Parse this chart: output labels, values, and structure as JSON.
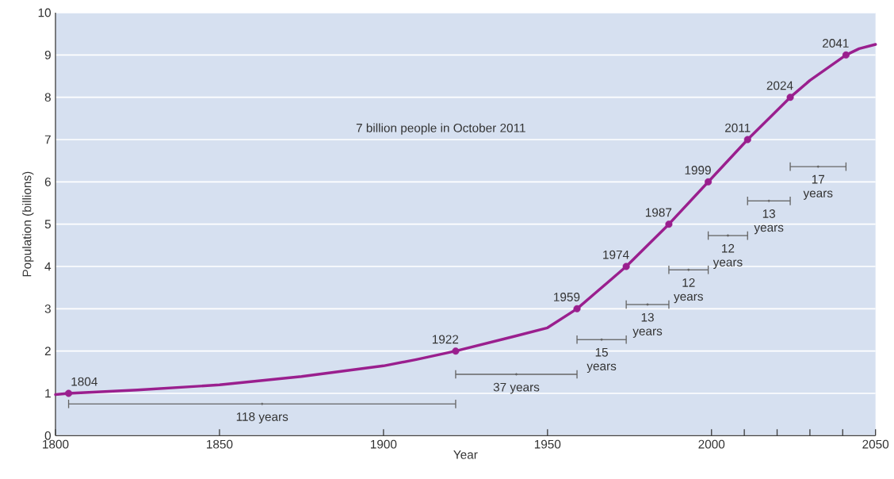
{
  "chart_data": {
    "type": "line",
    "xlabel": "Year",
    "ylabel": "Population (billions)",
    "xlim": [
      1800,
      2050
    ],
    "ylim": [
      0,
      10
    ],
    "xticks": [
      1800,
      1850,
      1900,
      1950,
      2000,
      {
        "value": 2010,
        "label": null
      },
      {
        "value": 2020,
        "label": null
      },
      {
        "value": 2030,
        "label": null
      },
      {
        "value": 2040,
        "label": null
      },
      2050
    ],
    "yticks": [
      0,
      1,
      2,
      3,
      4,
      5,
      6,
      7,
      8,
      9,
      10
    ],
    "grid": "y",
    "line_style": "solid",
    "series": [
      {
        "marker": "none",
        "color": "#9a1f8e",
        "x": [
          1800,
          1804,
          1825,
          1850,
          1875,
          1900,
          1910,
          1922,
          1940,
          1950,
          1959,
          1965,
          1974,
          1987,
          1999,
          2011,
          2024,
          2030,
          2041,
          2045,
          2050
        ],
        "values": [
          0.97,
          1,
          1.08,
          1.2,
          1.4,
          1.65,
          1.8,
          2,
          2.35,
          2.55,
          3,
          3.4,
          4,
          5,
          6,
          7,
          8,
          8.4,
          9,
          9.15,
          9.25
        ]
      },
      {
        "type": "scatter",
        "marker": "circle",
        "color": "#9a1f8e",
        "x": [
          1804,
          1922,
          1959,
          1974,
          1987,
          1999,
          2011,
          2024,
          2041
        ],
        "values": [
          1,
          2,
          3,
          4,
          5,
          6,
          7,
          8,
          9
        ]
      },
      {
        "type": "scatter",
        "marker": "circle",
        "color": "#666666",
        "x": [
          1863,
          1940.5,
          1966.5,
          1980.5,
          1993,
          2005,
          2017.5,
          2032.5
        ],
        "values": [
          0.75,
          1.45,
          2.27,
          3.1,
          3.92,
          4.73,
          5.55,
          6.36
        ],
        "xerrors": [
          [
            1804,
            1922
          ],
          [
            1922,
            1959
          ],
          [
            1959,
            1974
          ],
          [
            1974,
            1987
          ],
          [
            1987,
            1999
          ],
          [
            1999,
            2011
          ],
          [
            2011,
            2024
          ],
          [
            2024,
            2041
          ]
        ]
      }
    ],
    "annotations": [
      "7 billion people in October 2011",
      {
        "text": "1804",
        "x": 1804,
        "y": 1
      },
      {
        "text": "1922",
        "x": 1922,
        "y": 2
      },
      {
        "text": "1959",
        "x": 1959,
        "y": 3
      },
      {
        "text": "1974",
        "x": 1974,
        "y": 4
      },
      {
        "text": "1987",
        "x": 1987,
        "y": 5
      },
      {
        "text": "1999",
        "x": 1999,
        "y": 6
      },
      {
        "text": "2011",
        "x": 2011,
        "y": 7
      },
      {
        "text": "2024",
        "x": 2024,
        "y": 8
      },
      {
        "text": "2041",
        "x": 2041,
        "y": 9
      },
      {
        "text": "118 years",
        "x": 1863,
        "y": 0.75
      },
      {
        "text": "37 years",
        "x": 1940.5,
        "y": 1.45
      },
      {
        "text": "15 years",
        "x": 1966.5,
        "y": 2.27
      },
      {
        "text": "13 years",
        "x": 1980.5,
        "y": 3.1
      },
      {
        "text": "12 years",
        "x": 1993,
        "y": 3.92
      },
      {
        "text": "12 years",
        "x": 2005,
        "y": 4.73
      },
      {
        "text": "13 years",
        "x": 2017.5,
        "y": 5.55
      },
      {
        "text": "17 years",
        "x": 2032.5,
        "y": 6.36
      }
    ]
  }
}
